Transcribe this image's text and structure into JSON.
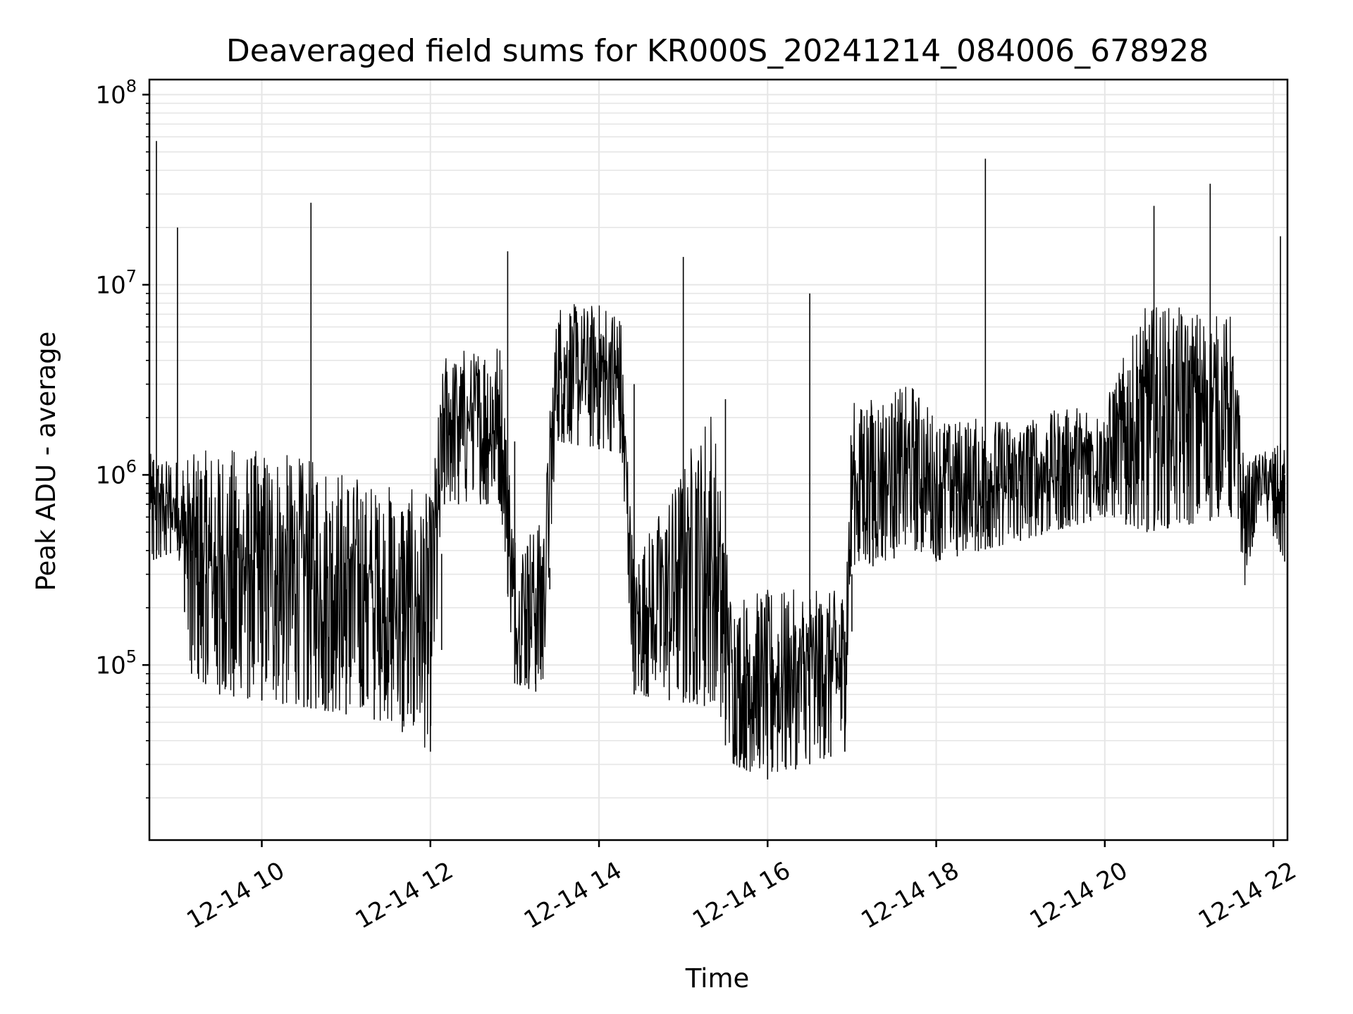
{
  "chart_data": {
    "type": "line",
    "title": "Deaveraged field sums for KR000S_20241214_084006_678928",
    "xlabel": "Time",
    "ylabel": "Peak ADU - average",
    "yscale": "log",
    "xlim": [
      "2024-12-14 08:40",
      "2024-12-14 22:10"
    ],
    "ylim": [
      12000,
      120000000
    ],
    "x_ticks": [
      "2024-12-14 10:00",
      "2024-12-14 12:00",
      "2024-12-14 14:00",
      "2024-12-14 16:00",
      "2024-12-14 18:00",
      "2024-12-14 20:00",
      "2024-12-14 22:00"
    ],
    "x_tick_labels": [
      "12-14 10",
      "12-14 12",
      "12-14 14",
      "12-14 16",
      "12-14 18",
      "12-14 20",
      "12-14 22"
    ],
    "y_ticks": [
      100000,
      1000000,
      10000000,
      100000000
    ],
    "y_tick_labels": [
      {
        "base": "10",
        "exp": "5"
      },
      {
        "base": "10",
        "exp": "6"
      },
      {
        "base": "10",
        "exp": "7"
      },
      {
        "base": "10",
        "exp": "8"
      }
    ],
    "grid": true,
    "line_color": "#000000",
    "grid_color": "#e6e6e6",
    "series": [
      {
        "x": [
          "2024-12-14 08:40",
          "2024-12-14 08:43",
          "2024-12-14 08:45",
          "2024-12-14 08:48",
          "2024-12-14 08:52",
          "2024-12-14 08:55",
          "2024-12-14 09:00",
          "2024-12-14 09:05",
          "2024-12-14 09:10",
          "2024-12-14 09:15",
          "2024-12-14 09:20",
          "2024-12-14 09:30",
          "2024-12-14 09:40",
          "2024-12-14 09:50",
          "2024-12-14 10:00",
          "2024-12-14 10:15",
          "2024-12-14 10:30",
          "2024-12-14 10:35",
          "2024-12-14 10:45",
          "2024-12-14 11:00",
          "2024-12-14 11:20",
          "2024-12-14 11:40",
          "2024-12-14 12:00",
          "2024-12-14 12:08",
          "2024-12-14 12:10",
          "2024-12-14 12:20",
          "2024-12-14 12:40",
          "2024-12-14 12:50",
          "2024-12-14 12:55",
          "2024-12-14 13:00",
          "2024-12-14 13:10",
          "2024-12-14 13:15",
          "2024-12-14 13:25",
          "2024-12-14 13:35",
          "2024-12-14 13:45",
          "2024-12-14 14:00",
          "2024-12-14 14:15",
          "2024-12-14 14:25",
          "2024-12-14 14:35",
          "2024-12-14 14:50",
          "2024-12-14 15:00",
          "2024-12-14 15:15",
          "2024-12-14 15:30",
          "2024-12-14 15:40",
          "2024-12-14 15:45",
          "2024-12-14 16:00",
          "2024-12-14 16:20",
          "2024-12-14 16:30",
          "2024-12-14 16:45",
          "2024-12-14 16:55",
          "2024-12-14 17:00",
          "2024-12-14 17:15",
          "2024-12-14 17:30",
          "2024-12-14 17:45",
          "2024-12-14 18:00",
          "2024-12-14 18:15",
          "2024-12-14 18:30",
          "2024-12-14 18:35",
          "2024-12-14 18:45",
          "2024-12-14 19:00",
          "2024-12-14 19:15",
          "2024-12-14 19:30",
          "2024-12-14 19:45",
          "2024-12-14 20:00",
          "2024-12-14 20:15",
          "2024-12-14 20:30",
          "2024-12-14 20:35",
          "2024-12-14 20:45",
          "2024-12-14 21:00",
          "2024-12-14 21:15",
          "2024-12-14 21:30",
          "2024-12-14 21:45",
          "2024-12-14 22:00",
          "2024-12-14 22:05",
          "2024-12-14 22:08"
        ],
        "y": [
          800000,
          1200000,
          57000000,
          900000,
          700000,
          1000000,
          20000000,
          500000,
          400000,
          150000,
          300000,
          600000,
          400000,
          700000,
          300000,
          500000,
          350000,
          27000000,
          300000,
          250000,
          200000,
          150000,
          150000,
          120000,
          1800000,
          1500000,
          2000000,
          1800000,
          15000000,
          1500000,
          300000,
          120000,
          250000,
          3000000,
          5000000,
          4000000,
          3500000,
          3000000,
          200000,
          150000,
          14000000,
          300000,
          2500000,
          100000,
          90000,
          80000,
          150000,
          9000000,
          120000,
          150000,
          150000,
          1200000,
          2000000,
          1500000,
          900000,
          800000,
          800000,
          46000000,
          900000,
          1000000,
          1200000,
          1100000,
          1300000,
          1500000,
          1800000,
          3000000,
          26000000,
          5000000,
          4000000,
          34000000,
          3500000,
          500000,
          1100000,
          18000000,
          1000000
        ],
        "band": [
          {
            "x": "2024-12-14 08:40",
            "low": 350000,
            "high": 1300000
          },
          {
            "x": "2024-12-14 09:00",
            "low": 400000,
            "high": 1200000
          },
          {
            "x": "2024-12-14 09:10",
            "low": 90000,
            "high": 1300000
          },
          {
            "x": "2024-12-14 09:30",
            "low": 70000,
            "high": 1400000
          },
          {
            "x": "2024-12-14 10:00",
            "low": 65000,
            "high": 1350000
          },
          {
            "x": "2024-12-14 10:30",
            "low": 60000,
            "high": 1250000
          },
          {
            "x": "2024-12-14 11:00",
            "low": 55000,
            "high": 1050000
          },
          {
            "x": "2024-12-14 11:30",
            "low": 50000,
            "high": 900000
          },
          {
            "x": "2024-12-14 12:00",
            "low": 35000,
            "high": 800000
          },
          {
            "x": "2024-12-14 12:10",
            "low": 700000,
            "high": 4500000
          },
          {
            "x": "2024-12-14 12:50",
            "low": 700000,
            "high": 5000000
          },
          {
            "x": "2024-12-14 13:00",
            "low": 80000,
            "high": 500000
          },
          {
            "x": "2024-12-14 13:20",
            "low": 70000,
            "high": 600000
          },
          {
            "x": "2024-12-14 13:30",
            "low": 1500000,
            "high": 8000000
          },
          {
            "x": "2024-12-14 14:15",
            "low": 1300000,
            "high": 8000000
          },
          {
            "x": "2024-12-14 14:25",
            "low": 70000,
            "high": 350000
          },
          {
            "x": "2024-12-14 15:20",
            "low": 60000,
            "high": 2500000
          },
          {
            "x": "2024-12-14 15:35",
            "low": 30000,
            "high": 230000
          },
          {
            "x": "2024-12-14 16:00",
            "low": 25000,
            "high": 250000
          },
          {
            "x": "2024-12-14 16:55",
            "low": 35000,
            "high": 250000
          },
          {
            "x": "2024-12-14 17:00",
            "low": 300000,
            "high": 2500000
          },
          {
            "x": "2024-12-14 17:45",
            "low": 400000,
            "high": 3000000
          },
          {
            "x": "2024-12-14 18:00",
            "low": 350000,
            "high": 2000000
          },
          {
            "x": "2024-12-14 19:00",
            "low": 450000,
            "high": 2000000
          },
          {
            "x": "2024-12-14 20:00",
            "low": 600000,
            "high": 2500000
          },
          {
            "x": "2024-12-14 20:30",
            "low": 500000,
            "high": 8000000
          },
          {
            "x": "2024-12-14 21:30",
            "low": 600000,
            "high": 7000000
          },
          {
            "x": "2024-12-14 21:40",
            "low": 250000,
            "high": 1200000
          },
          {
            "x": "2024-12-14 21:50",
            "low": 700000,
            "high": 1300000
          },
          {
            "x": "2024-12-14 22:08",
            "low": 350000,
            "high": 1500000
          }
        ]
      }
    ]
  }
}
